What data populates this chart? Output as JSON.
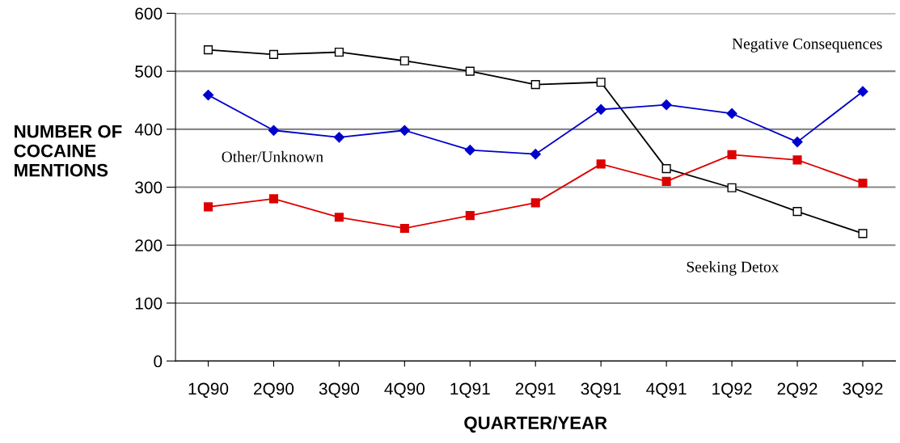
{
  "chart_data": {
    "type": "line",
    "xlabel": "QUARTER/YEAR",
    "ylabel": "NUMBER OF\nCOCAINE\nMENTIONS",
    "categories": [
      "1Q90",
      "2Q90",
      "3Q90",
      "4Q90",
      "1Q91",
      "2Q91",
      "3Q91",
      "4Q91",
      "1Q92",
      "2Q92",
      "3Q92"
    ],
    "series": [
      {
        "color": "#000000",
        "marker": "square",
        "values": [
          537,
          529,
          533,
          518,
          500,
          477,
          481,
          332,
          299,
          258,
          220
        ]
      },
      {
        "color": "#0000cc",
        "marker": "diamond",
        "values": [
          459,
          398,
          386,
          398,
          364,
          357,
          434,
          442,
          427,
          378,
          465
        ]
      },
      {
        "color": "#dd0000",
        "marker": "square",
        "values": [
          266,
          280,
          248,
          229,
          251,
          273,
          340,
          310,
          356,
          347,
          307
        ]
      }
    ],
    "annotations": [
      "Negative Consequences",
      "Other/Unknown",
      "Seeking Detox"
    ],
    "ylim": [
      0,
      600
    ],
    "yticks": [
      0,
      100,
      200,
      300,
      400,
      500,
      600
    ],
    "grid": "y",
    "legend": false
  }
}
